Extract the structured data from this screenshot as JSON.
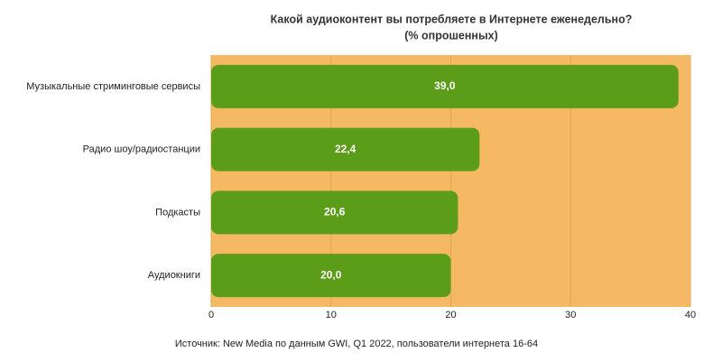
{
  "chart_data": {
    "type": "bar",
    "orientation": "horizontal",
    "title": "Какой аудиоконтент вы потребляете в Интернете еженедельно?",
    "subtitle": "(% опрошенных)",
    "categories": [
      "Музыкальные стриминговые сервисы",
      "Радио шоу/радиостанции",
      "Подкасты",
      "Аудиокниги"
    ],
    "values": [
      39.0,
      22.4,
      20.6,
      20.0
    ],
    "value_labels": [
      "39,0",
      "22,4",
      "20,6",
      "20,0"
    ],
    "color": "#5b9c18",
    "background": "#f5b963",
    "xlim": [
      0,
      40
    ],
    "xticks": [
      0,
      10,
      20,
      30,
      40
    ],
    "grid": true,
    "source": "Источник: New Media по данным GWI, Q1 2022, пользователи интернета 16-64"
  }
}
